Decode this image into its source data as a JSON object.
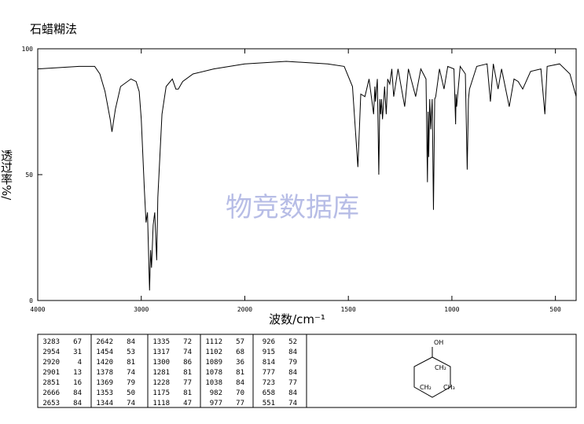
{
  "chart_data": {
    "type": "line",
    "title": "石蜡糊法",
    "xlabel": "波数/cm⁻¹",
    "ylabel": "透过率%/",
    "watermark": "物竞数据库",
    "color": "#000000",
    "xlim": [
      4000,
      400
    ],
    "xticks": [
      4000,
      3000,
      2000,
      1500,
      1000,
      500
    ],
    "x_scale_break": 2000,
    "ylim": [
      0,
      100
    ],
    "yticks": [
      0,
      50,
      100
    ],
    "x": [
      4000,
      3800,
      3600,
      3450,
      3400,
      3350,
      3300,
      3283,
      3250,
      3200,
      3100,
      3050,
      3020,
      3000,
      2970,
      2954,
      2940,
      2920,
      2910,
      2901,
      2885,
      2870,
      2851,
      2840,
      2800,
      2760,
      2700,
      2666,
      2653,
      2642,
      2600,
      2500,
      2300,
      2000,
      1800,
      1600,
      1520,
      1480,
      1454,
      1440,
      1420,
      1400,
      1378,
      1372,
      1369,
      1360,
      1353,
      1348,
      1344,
      1340,
      1335,
      1325,
      1317,
      1310,
      1300,
      1290,
      1281,
      1260,
      1228,
      1210,
      1175,
      1150,
      1125,
      1118,
      1115,
      1112,
      1107,
      1102,
      1095,
      1089,
      1083,
      1078,
      1060,
      1038,
      1020,
      990,
      982,
      980,
      977,
      960,
      935,
      926,
      920,
      915,
      880,
      830,
      814,
      800,
      777,
      760,
      723,
      700,
      680,
      658,
      620,
      570,
      551,
      540,
      480,
      430,
      400
    ],
    "values": [
      92,
      92.5,
      93,
      93,
      90,
      83,
      72,
      67,
      76,
      85,
      88,
      87,
      83,
      72,
      44,
      31,
      35,
      4,
      20,
      13,
      30,
      35,
      16,
      41,
      74,
      85,
      88,
      84,
      84,
      84,
      87,
      90,
      92,
      94,
      95,
      94,
      93,
      85,
      53,
      82,
      81,
      88,
      74,
      85,
      79,
      88,
      50,
      80,
      74,
      80,
      72,
      85,
      74,
      88,
      86,
      92,
      81,
      92,
      77,
      92,
      81,
      92,
      88,
      47,
      75,
      57,
      80,
      68,
      80,
      36,
      80,
      81,
      92,
      84,
      93,
      92,
      70,
      82,
      77,
      93,
      90,
      52,
      80,
      84,
      93,
      94,
      79,
      94,
      84,
      92,
      77,
      88,
      87,
      84,
      91,
      92,
      74,
      93,
      94,
      90,
      81
    ]
  },
  "peak_table": {
    "columns": [
      [
        [
          "3283",
          "67"
        ],
        [
          "2954",
          "31"
        ],
        [
          "2920",
          "4"
        ],
        [
          "2901",
          "13"
        ],
        [
          "2851",
          "16"
        ],
        [
          "2666",
          "84"
        ],
        [
          "2653",
          "84"
        ]
      ],
      [
        [
          "2642",
          "84"
        ],
        [
          "1454",
          "53"
        ],
        [
          "1420",
          "81"
        ],
        [
          "1378",
          "74"
        ],
        [
          "1369",
          "79"
        ],
        [
          "1353",
          "50"
        ],
        [
          "1344",
          "74"
        ]
      ],
      [
        [
          "1335",
          "72"
        ],
        [
          "1317",
          "74"
        ],
        [
          "1300",
          "86"
        ],
        [
          "1281",
          "81"
        ],
        [
          "1228",
          "77"
        ],
        [
          "1175",
          "81"
        ],
        [
          "1118",
          "47"
        ]
      ],
      [
        [
          "1112",
          "57"
        ],
        [
          "1102",
          "68"
        ],
        [
          "1089",
          "36"
        ],
        [
          "1078",
          "81"
        ],
        [
          "1038",
          "84"
        ],
        [
          "982",
          "70"
        ],
        [
          "977",
          "77"
        ]
      ],
      [
        [
          "926",
          "52"
        ],
        [
          "915",
          "84"
        ],
        [
          "814",
          "79"
        ],
        [
          "777",
          "84"
        ],
        [
          "723",
          "77"
        ],
        [
          "658",
          "84"
        ],
        [
          "551",
          "74"
        ]
      ]
    ]
  },
  "structure": {
    "labels": [
      "OH",
      "CH₂",
      "CH₂",
      "CH₃"
    ]
  }
}
